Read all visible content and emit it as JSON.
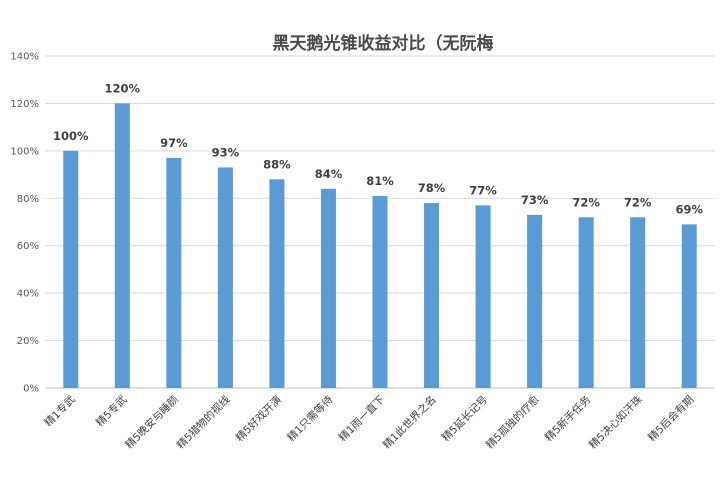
{
  "chart_data": {
    "type": "bar",
    "title": "黑天鹅光锥收益对比（无阮梅",
    "xlabel": "",
    "ylabel": "",
    "categories": [
      "精1专武",
      "精5专武",
      "精5晚安与睡颜",
      "精5猎物的视线",
      "精5好戏开演",
      "精1只需等待",
      "精1雨一直下",
      "精1此世界之名",
      "精5延长记号",
      "精5孤独的疗愈",
      "精5新手任务",
      "精5决心如汗珠",
      "精5后会有期"
    ],
    "values": [
      100,
      120,
      97,
      93,
      88,
      84,
      81,
      78,
      77,
      73,
      72,
      72,
      69
    ],
    "data_labels": [
      "100%",
      "120%",
      "97%",
      "93%",
      "88%",
      "84%",
      "81%",
      "78%",
      "77%",
      "73%",
      "72%",
      "72%",
      "69%"
    ],
    "ylim": [
      0,
      140
    ],
    "yticks": [
      0,
      20,
      40,
      60,
      80,
      100,
      120,
      140
    ],
    "ytick_labels": [
      "0%",
      "20%",
      "40%",
      "60%",
      "80%",
      "100%",
      "120%",
      "140%"
    ],
    "grid": true,
    "bar_color": "#5b9bd5",
    "grid_color": "#d9d9d9"
  }
}
